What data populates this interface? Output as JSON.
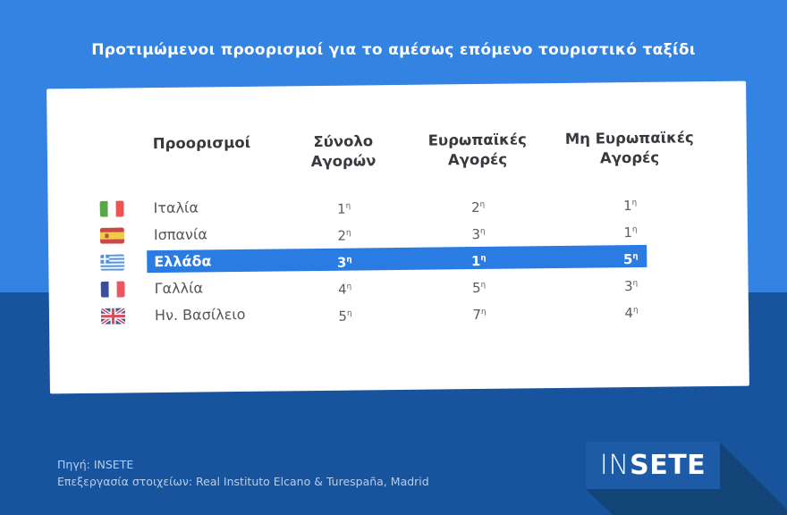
{
  "title": "Προτιμώμενοι προορισμοί για το αμέσως επόμενο τουριστικό ταξίδι",
  "table": {
    "columns": [
      "Προορισμοί",
      "Σύνολο\nΑγορών",
      "Ευρωπαϊκές\nΑγορές",
      "Μη Ευρωπαϊκές\nΑγορές"
    ],
    "rows": [
      {
        "country": "Ιταλία",
        "flag": "italy",
        "total": "1η",
        "european": "2η",
        "non_european": "1η",
        "highlight": false
      },
      {
        "country": "Ισπανία",
        "flag": "spain",
        "total": "2η",
        "european": "3η",
        "non_european": "1η",
        "highlight": false
      },
      {
        "country": "Ελλάδα",
        "flag": "greece",
        "total": "3η",
        "european": "1η",
        "non_european": "5η",
        "highlight": true
      },
      {
        "country": "Γαλλία",
        "flag": "france",
        "total": "4η",
        "european": "5η",
        "non_european": "3η",
        "highlight": false
      },
      {
        "country": "Ην. Βασίλειο",
        "flag": "uk",
        "total": "5η",
        "european": "7η",
        "non_european": "4η",
        "highlight": false
      }
    ]
  },
  "footer": {
    "source_line1": "Πηγή: INSETE",
    "source_line2": "Επεξεργασία στοιχείων: Real Instituto Elcano & Turespaña, Madrid",
    "logo": {
      "part1": "IN",
      "part2": "SETE"
    }
  },
  "colors": {
    "top_bg": "#3383e2",
    "bottom_bg": "#18539e",
    "highlight": "#2a7ce2",
    "card_bg": "#ffffff",
    "source_text": "#b7cfec",
    "logo_bg": "#1e5ba6",
    "logo_shadow": "#134478"
  },
  "chart_data": {
    "type": "table",
    "title": "Προτιμώμενοι προορισμοί για το αμέσως επόμενο τουριστικό ταξίδι",
    "columns": [
      "Προορισμοί",
      "Σύνολο Αγορών",
      "Ευρωπαϊκές Αγορές",
      "Μη Ευρωπαϊκές Αγορές"
    ],
    "rows": [
      [
        "Ιταλία",
        "1η",
        "2η",
        "1η"
      ],
      [
        "Ισπανία",
        "2η",
        "3η",
        "1η"
      ],
      [
        "Ελλάδα",
        "3η",
        "1η",
        "5η"
      ],
      [
        "Γαλλία",
        "4η",
        "5η",
        "3η"
      ],
      [
        "Ην. Βασίλειο",
        "5η",
        "7η",
        "4η"
      ]
    ],
    "highlighted_row": "Ελλάδα",
    "source": "Πηγή: INSETE — Επεξεργασία στοιχείων: Real Instituto Elcano & Turespaña, Madrid"
  }
}
